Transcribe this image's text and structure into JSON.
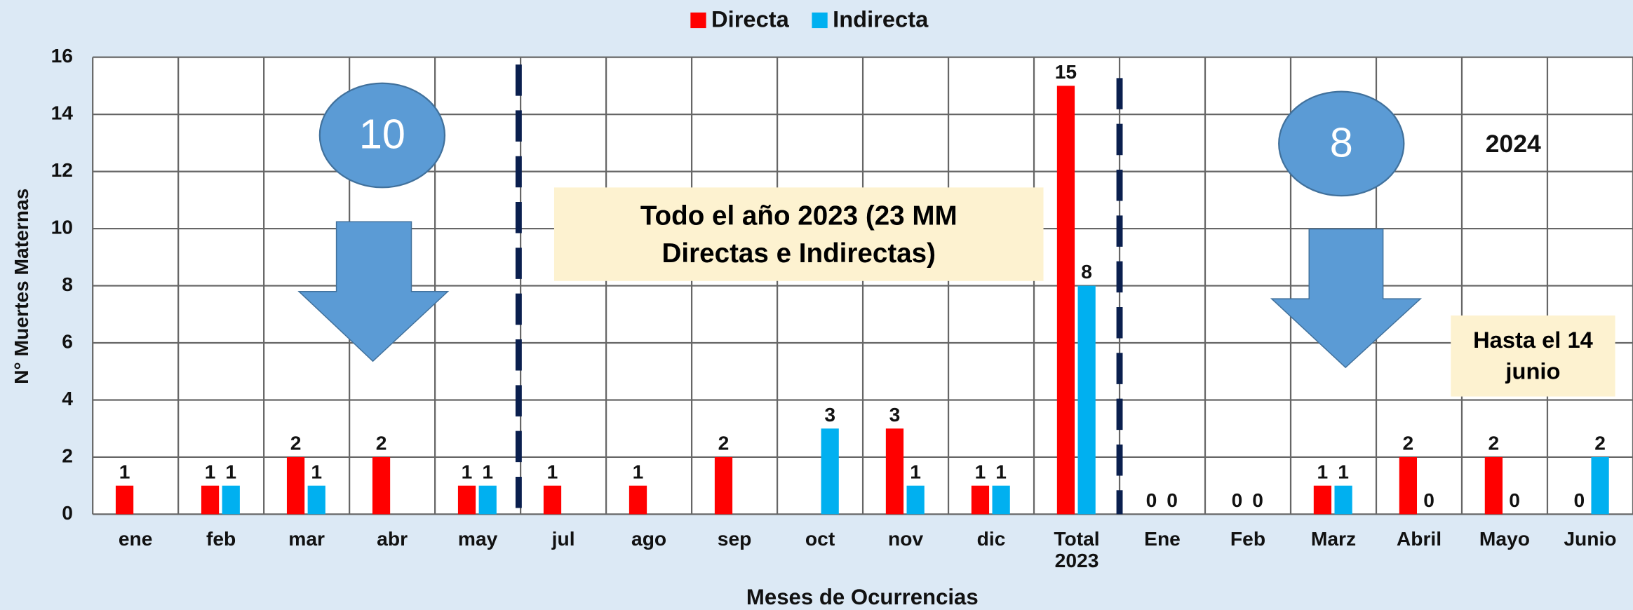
{
  "chart_data": {
    "type": "bar",
    "categories": [
      "ene",
      "feb",
      "mar",
      "abr",
      "may",
      "jul",
      "ago",
      "sep",
      "oct",
      "nov",
      "dic",
      "Total\n2023",
      "Ene",
      "Feb",
      "Marz",
      "Abril",
      "Mayo",
      "Junio"
    ],
    "series": [
      {
        "name": "Directa",
        "color": "#ff0000",
        "values": [
          1,
          1,
          2,
          2,
          1,
          1,
          1,
          2,
          null,
          3,
          1,
          15,
          0,
          0,
          1,
          2,
          2,
          0
        ]
      },
      {
        "name": "Indirecta",
        "color": "#00b0f0",
        "values": [
          null,
          1,
          1,
          null,
          1,
          null,
          null,
          null,
          3,
          1,
          1,
          8,
          0,
          0,
          1,
          0,
          0,
          2
        ]
      }
    ],
    "y_label": "N° Muertes Maternas",
    "x_label": "Meses de Ocurrencias",
    "ylim": [
      0,
      16
    ],
    "yticks": [
      0,
      2,
      4,
      6,
      8,
      10,
      12,
      14,
      16
    ],
    "grid": true,
    "legend": "top",
    "annotations": [
      "10",
      "8",
      "2024",
      "Todo el año 2023 (23 MM Directas e Indirectas)",
      "Hasta el 14 junio"
    ]
  }
}
